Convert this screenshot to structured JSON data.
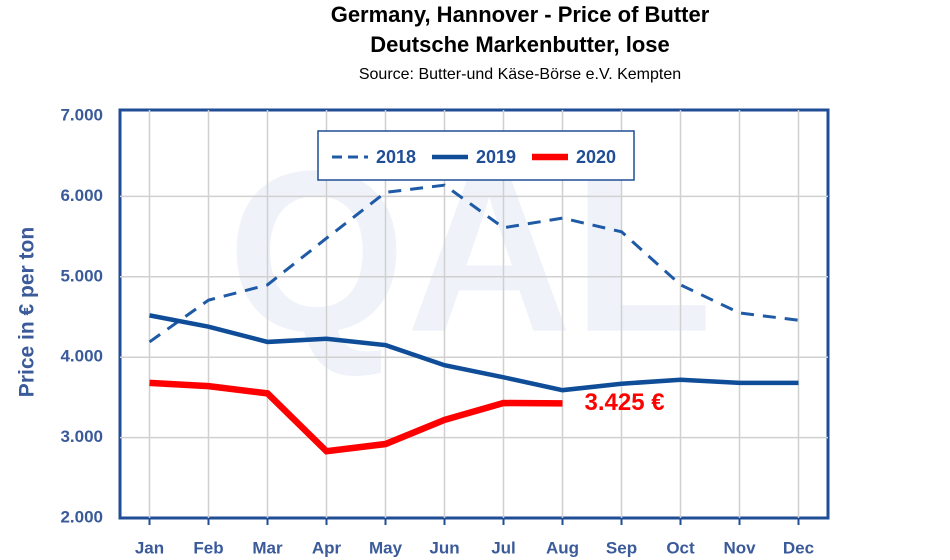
{
  "chart_data": {
    "type": "line",
    "title": "Germany, Hannover - Price of Butter",
    "subtitle": "Deutsche Markenbutter, lose",
    "source": "Source: Butter-und Käse-Börse e.V. Kempten",
    "ylabel": "Price in € per ton",
    "watermark": "QAL",
    "categories": [
      "Jan",
      "Feb",
      "Mar",
      "Apr",
      "May",
      "Jun",
      "Jul",
      "Aug",
      "Sep",
      "Oct",
      "Nov",
      "Dec"
    ],
    "series": [
      {
        "name": "2018",
        "color": "#1f5aa6",
        "dash": true,
        "width": 3,
        "values": [
          4190,
          4710,
          4900,
          5480,
          6050,
          6140,
          5610,
          5730,
          5560,
          4900,
          4550,
          4460
        ]
      },
      {
        "name": "2019",
        "color": "#0f4d99",
        "dash": false,
        "width": 4.5,
        "values": [
          4520,
          4380,
          4190,
          4230,
          4150,
          3900,
          3750,
          3590,
          3670,
          3720,
          3680,
          3680
        ]
      },
      {
        "name": "2020",
        "color": "#ff0000",
        "dash": false,
        "width": 6.5,
        "values": [
          3680,
          3640,
          3550,
          2830,
          2920,
          3220,
          3430,
          3425,
          null,
          null,
          null,
          null
        ],
        "value_labels": [
          null,
          null,
          null,
          null,
          null,
          null,
          null,
          "3.425 €",
          null,
          null,
          null,
          null
        ]
      }
    ],
    "ylim": [
      2000,
      7000
    ],
    "yticks": [
      {
        "value": 2000,
        "label": "2.000"
      },
      {
        "value": 3000,
        "label": "3.000"
      },
      {
        "value": 4000,
        "label": "4.000"
      },
      {
        "value": 5000,
        "label": "5.000"
      },
      {
        "value": 6000,
        "label": "6.000"
      },
      {
        "value": 7000,
        "label": "7.000"
      }
    ],
    "grid": true,
    "legend": "top"
  }
}
